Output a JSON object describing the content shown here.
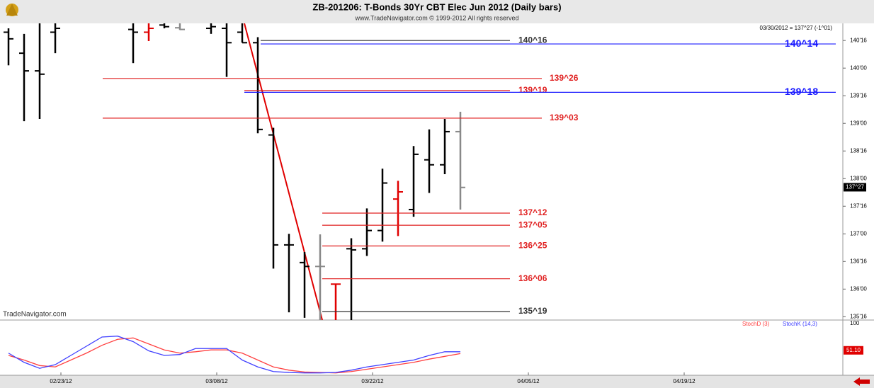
{
  "chart_data": [
    {
      "type": "ohlc",
      "title": "ZB-201206:  T-Bonds 30Yr CBT Elec Jun 2012  (Daily bars)",
      "subtitle": "www.TradeNavigator.com © 1999-2012 All rights reserved",
      "header": "03/30/2012 = 137^27 (-1^01)",
      "watermark": "TradeNavigator.com",
      "x": [
        "02/20/12",
        "02/21/12",
        "02/22/12",
        "02/23/12",
        "03/01/12",
        "03/02/12",
        "03/05/12",
        "03/06/12",
        "03/08/12",
        "03/09/12",
        "03/12/12",
        "03/13/12",
        "03/14/12",
        "03/15/12",
        "03/16/12",
        "03/19/12",
        "03/20/12",
        "03/21/12",
        "03/22/12",
        "03/23/12",
        "03/26/12",
        "03/27/12",
        "03/28/12",
        "03/29/12",
        "03/30/12"
      ],
      "open": [
        140.65,
        140.27,
        139.95,
        140.65,
        140.7,
        140.65,
        140.78,
        140.73,
        140.72,
        140.72,
        140.65,
        140.46,
        138.79,
        136.8,
        136.48,
        136.41,
        136.09,
        136.73,
        136.73,
        137.06,
        137.63,
        137.44,
        138.34,
        138.25,
        138.85
      ],
      "high": [
        140.72,
        140.62,
        140.81,
        140.81,
        140.81,
        140.81,
        140.81,
        140.81,
        140.81,
        140.81,
        140.81,
        140.56,
        138.92,
        137.0,
        136.67,
        136.99,
        136.09,
        136.92,
        137.46,
        138.18,
        137.96,
        138.59,
        138.89,
        139.08,
        139.21
      ],
      "low": [
        140.05,
        139.04,
        139.08,
        140.27,
        140.09,
        140.49,
        140.72,
        140.69,
        140.62,
        139.84,
        140.46,
        138.82,
        136.37,
        135.58,
        135.48,
        135.43,
        135.43,
        135.43,
        136.6,
        136.86,
        136.96,
        137.31,
        137.74,
        138.08,
        137.44
      ],
      "close": [
        140.53,
        139.95,
        139.89,
        140.72,
        140.65,
        140.72,
        140.75,
        140.7,
        140.75,
        140.46,
        140.46,
        138.89,
        136.8,
        136.8,
        136.41,
        136.41,
        136.09,
        136.71,
        137.06,
        137.92,
        137.76,
        138.44,
        138.25,
        138.85,
        137.84
      ],
      "colors": [
        "#000",
        "#000",
        "#000",
        "#000",
        "#000",
        "#e00000",
        "#000",
        "#888",
        "#000",
        "#000",
        "#000",
        "#000",
        "#000",
        "#000",
        "#000",
        "#888",
        "#e00000",
        "#000",
        "#000",
        "#000",
        "#e00000",
        "#000",
        "#000",
        "#000",
        "#888"
      ],
      "ylim": [
        135.44,
        140.81
      ],
      "yticks": [
        {
          "value": 140.5,
          "label": "140'16"
        },
        {
          "value": 140,
          "label": "140'00"
        },
        {
          "value": 139.5,
          "label": "139'16"
        },
        {
          "value": 139,
          "label": "139'00"
        },
        {
          "value": 138.5,
          "label": "138'16"
        },
        {
          "value": 138,
          "label": "138'00"
        },
        {
          "value": 137.5,
          "label": "137'16"
        },
        {
          "value": 137,
          "label": "137'00"
        },
        {
          "value": 136.5,
          "label": "136'16"
        },
        {
          "value": 136,
          "label": "136'00"
        },
        {
          "value": 135.5,
          "label": "135'16"
        }
      ],
      "xticks": [
        "02/23/12",
        "03/08/12",
        "03/22/12",
        "04/05/12",
        "04/19/12"
      ],
      "last_price": {
        "value": 137.84375,
        "label": "137^27"
      },
      "levels": [
        {
          "value": 140.5,
          "label": "140^16",
          "color": "#333333"
        },
        {
          "value": 140.4375,
          "label": "140^14",
          "color": "#1a1aff"
        },
        {
          "value": 139.8125,
          "label": "139^26",
          "color": "#e02020"
        },
        {
          "value": 139.59375,
          "label": "139^19",
          "color": "#e02020"
        },
        {
          "value": 139.5625,
          "label": "139^18",
          "color": "#1a1aff"
        },
        {
          "value": 139.09375,
          "label": "139^03",
          "color": "#e02020"
        },
        {
          "value": 137.375,
          "label": "137^12",
          "color": "#e02020"
        },
        {
          "value": 137.15625,
          "label": "137^05",
          "color": "#e02020"
        },
        {
          "value": 136.78125,
          "label": "136^25",
          "color": "#e02020"
        },
        {
          "value": 136.1875,
          "label": "136^06",
          "color": "#e02020"
        },
        {
          "value": 135.59375,
          "label": "135^19",
          "color": "#333333"
        }
      ]
    },
    {
      "type": "line",
      "x": [
        "02/20/12",
        "02/21/12",
        "02/22/12",
        "02/23/12",
        "02/24/12",
        "02/27/12",
        "02/28/12",
        "02/29/12",
        "03/01/12",
        "03/02/12",
        "03/05/12",
        "03/06/12",
        "03/07/12",
        "03/08/12",
        "03/09/12",
        "03/12/12",
        "03/13/12",
        "03/14/12",
        "03/15/12",
        "03/16/12",
        "03/19/12",
        "03/20/12",
        "03/21/12",
        "03/22/12",
        "03/23/12",
        "03/26/12",
        "03/27/12",
        "03/28/12",
        "03/29/12",
        "03/30/12"
      ],
      "ylim": [
        0,
        100
      ],
      "yticks": [
        100
      ],
      "last_value": {
        "value": 51.1,
        "label": "51.10"
      },
      "series": [
        {
          "name": "StochD (3)",
          "color": "#ff4040",
          "values": [
            40,
            30,
            18,
            15,
            30,
            45,
            62,
            75,
            78,
            65,
            52,
            45,
            48,
            52,
            52,
            45,
            30,
            15,
            8,
            4,
            3,
            2,
            5,
            10,
            15,
            20,
            25,
            32,
            38,
            44
          ]
        },
        {
          "name": "StochK (14,3)",
          "color": "#4040ff",
          "values": [
            45,
            25,
            12,
            20,
            40,
            60,
            80,
            82,
            70,
            50,
            40,
            42,
            55,
            55,
            55,
            30,
            15,
            5,
            3,
            2,
            2,
            3,
            8,
            15,
            20,
            25,
            30,
            40,
            48,
            48
          ]
        }
      ]
    }
  ]
}
